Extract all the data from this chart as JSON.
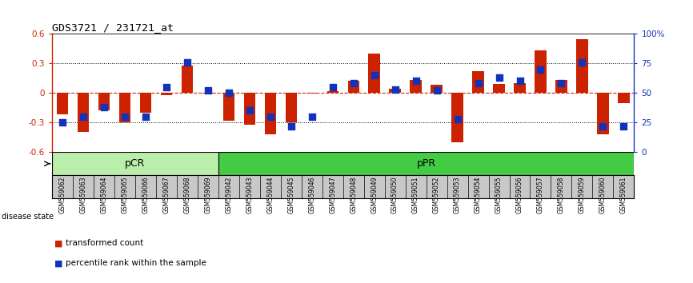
{
  "title": "GDS3721 / 231721_at",
  "samples": [
    "GSM559062",
    "GSM559063",
    "GSM559064",
    "GSM559065",
    "GSM559066",
    "GSM559067",
    "GSM559068",
    "GSM559069",
    "GSM559042",
    "GSM559043",
    "GSM559044",
    "GSM559045",
    "GSM559046",
    "GSM559047",
    "GSM559048",
    "GSM559049",
    "GSM559050",
    "GSM559051",
    "GSM559052",
    "GSM559053",
    "GSM559054",
    "GSM559055",
    "GSM559056",
    "GSM559057",
    "GSM559058",
    "GSM559059",
    "GSM559060",
    "GSM559061"
  ],
  "transformed_count": [
    -0.22,
    -0.4,
    -0.18,
    -0.3,
    -0.2,
    -0.02,
    0.28,
    -0.01,
    -0.28,
    -0.32,
    -0.42,
    -0.3,
    -0.01,
    0.02,
    0.12,
    0.4,
    0.04,
    0.13,
    0.08,
    -0.5,
    0.22,
    0.09,
    0.1,
    0.43,
    0.13,
    0.55,
    -0.42,
    -0.1
  ],
  "percentile_rank": [
    25,
    30,
    38,
    30,
    30,
    55,
    76,
    52,
    50,
    35,
    30,
    22,
    30,
    55,
    58,
    65,
    53,
    60,
    52,
    28,
    58,
    63,
    60,
    70,
    58,
    76,
    22,
    22
  ],
  "pcr_count": 8,
  "ppr_count": 20,
  "ylim": [
    -0.6,
    0.6
  ],
  "yticks_left": [
    -0.6,
    -0.3,
    0.0,
    0.3,
    0.6
  ],
  "yticks_right": [
    0,
    25,
    50,
    75,
    100
  ],
  "dotted_lines": [
    -0.3,
    0.3
  ],
  "bar_color": "#cc2200",
  "dot_color": "#1133bb",
  "pcr_color": "#bbeeaa",
  "ppr_color": "#44cc44",
  "bg_color": "#c8c8c8",
  "zero_line_color": "#cc2200",
  "legend_bar_label": "transformed count",
  "legend_dot_label": "percentile rank within the sample",
  "disease_state_label": "disease state",
  "pcr_label": "pCR",
  "ppr_label": "pPR"
}
